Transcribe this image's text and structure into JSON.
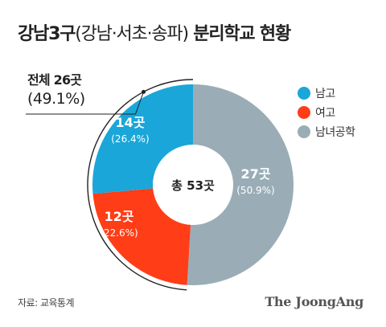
{
  "title_main": "강남3구",
  "title_paren": "(강남·서초·송파)",
  "title_rest": "분리학교 현황",
  "total_label": "전체 26곳",
  "total_pct": "(49.1%)",
  "legend": [
    {
      "label": "남고",
      "color": "#1aa6d9"
    },
    {
      "label": "여고",
      "color": "#ff3d17"
    },
    {
      "label": "남녀공학",
      "color": "#9aadb6"
    }
  ],
  "source": "자료: 교육통계",
  "logo": "The JoongAng",
  "chart_data": {
    "type": "pie",
    "donut": true,
    "center_label": "총 53곳",
    "slices": [
      {
        "name": "남고",
        "value": 14,
        "label": "14곳",
        "pct": "(26.4%)",
        "color": "#1aa6d9"
      },
      {
        "name": "여고",
        "value": 12,
        "label": "12곳",
        "pct": "(22.6%)",
        "color": "#ff3d17"
      },
      {
        "name": "남녀공학",
        "value": 27,
        "label": "27곳",
        "pct": "(50.9%)",
        "color": "#9aadb6"
      }
    ]
  }
}
